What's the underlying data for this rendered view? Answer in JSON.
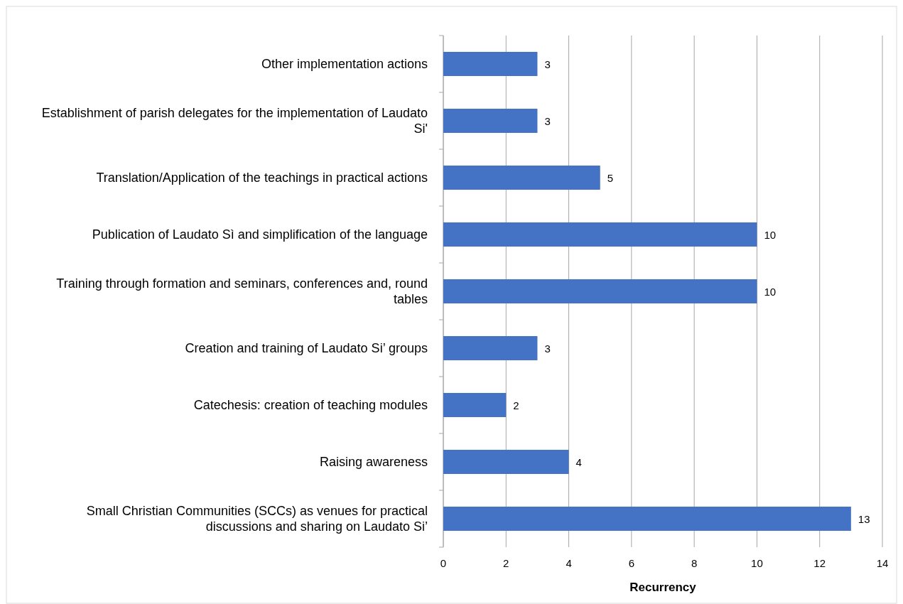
{
  "chart_data": {
    "type": "bar",
    "orientation": "horizontal",
    "xlabel": "Recurrency",
    "categories": [
      "Other implementation actions",
      "Establishment of parish delegates for the implementation of Laudato Si'",
      "Translation/Application of the teachings in practical actions",
      "Publication of Laudato Sì and simplification of the language",
      "Training through formation and seminars, conferences and, round tables",
      "Creation and training of Laudato Si’ groups",
      "Catechesis: creation of teaching modules",
      "Raising awareness",
      "Small Christian Communities (SCCs) as venues for practical discussions and sharing on Laudato Si’"
    ],
    "values": [
      3,
      3,
      5,
      10,
      10,
      3,
      2,
      4,
      13
    ],
    "color": "#4472c4",
    "xlim": [
      0,
      14
    ],
    "xticks": [
      0,
      2,
      4,
      6,
      8,
      10,
      12,
      14
    ],
    "grid": "x",
    "data_labels": true
  }
}
